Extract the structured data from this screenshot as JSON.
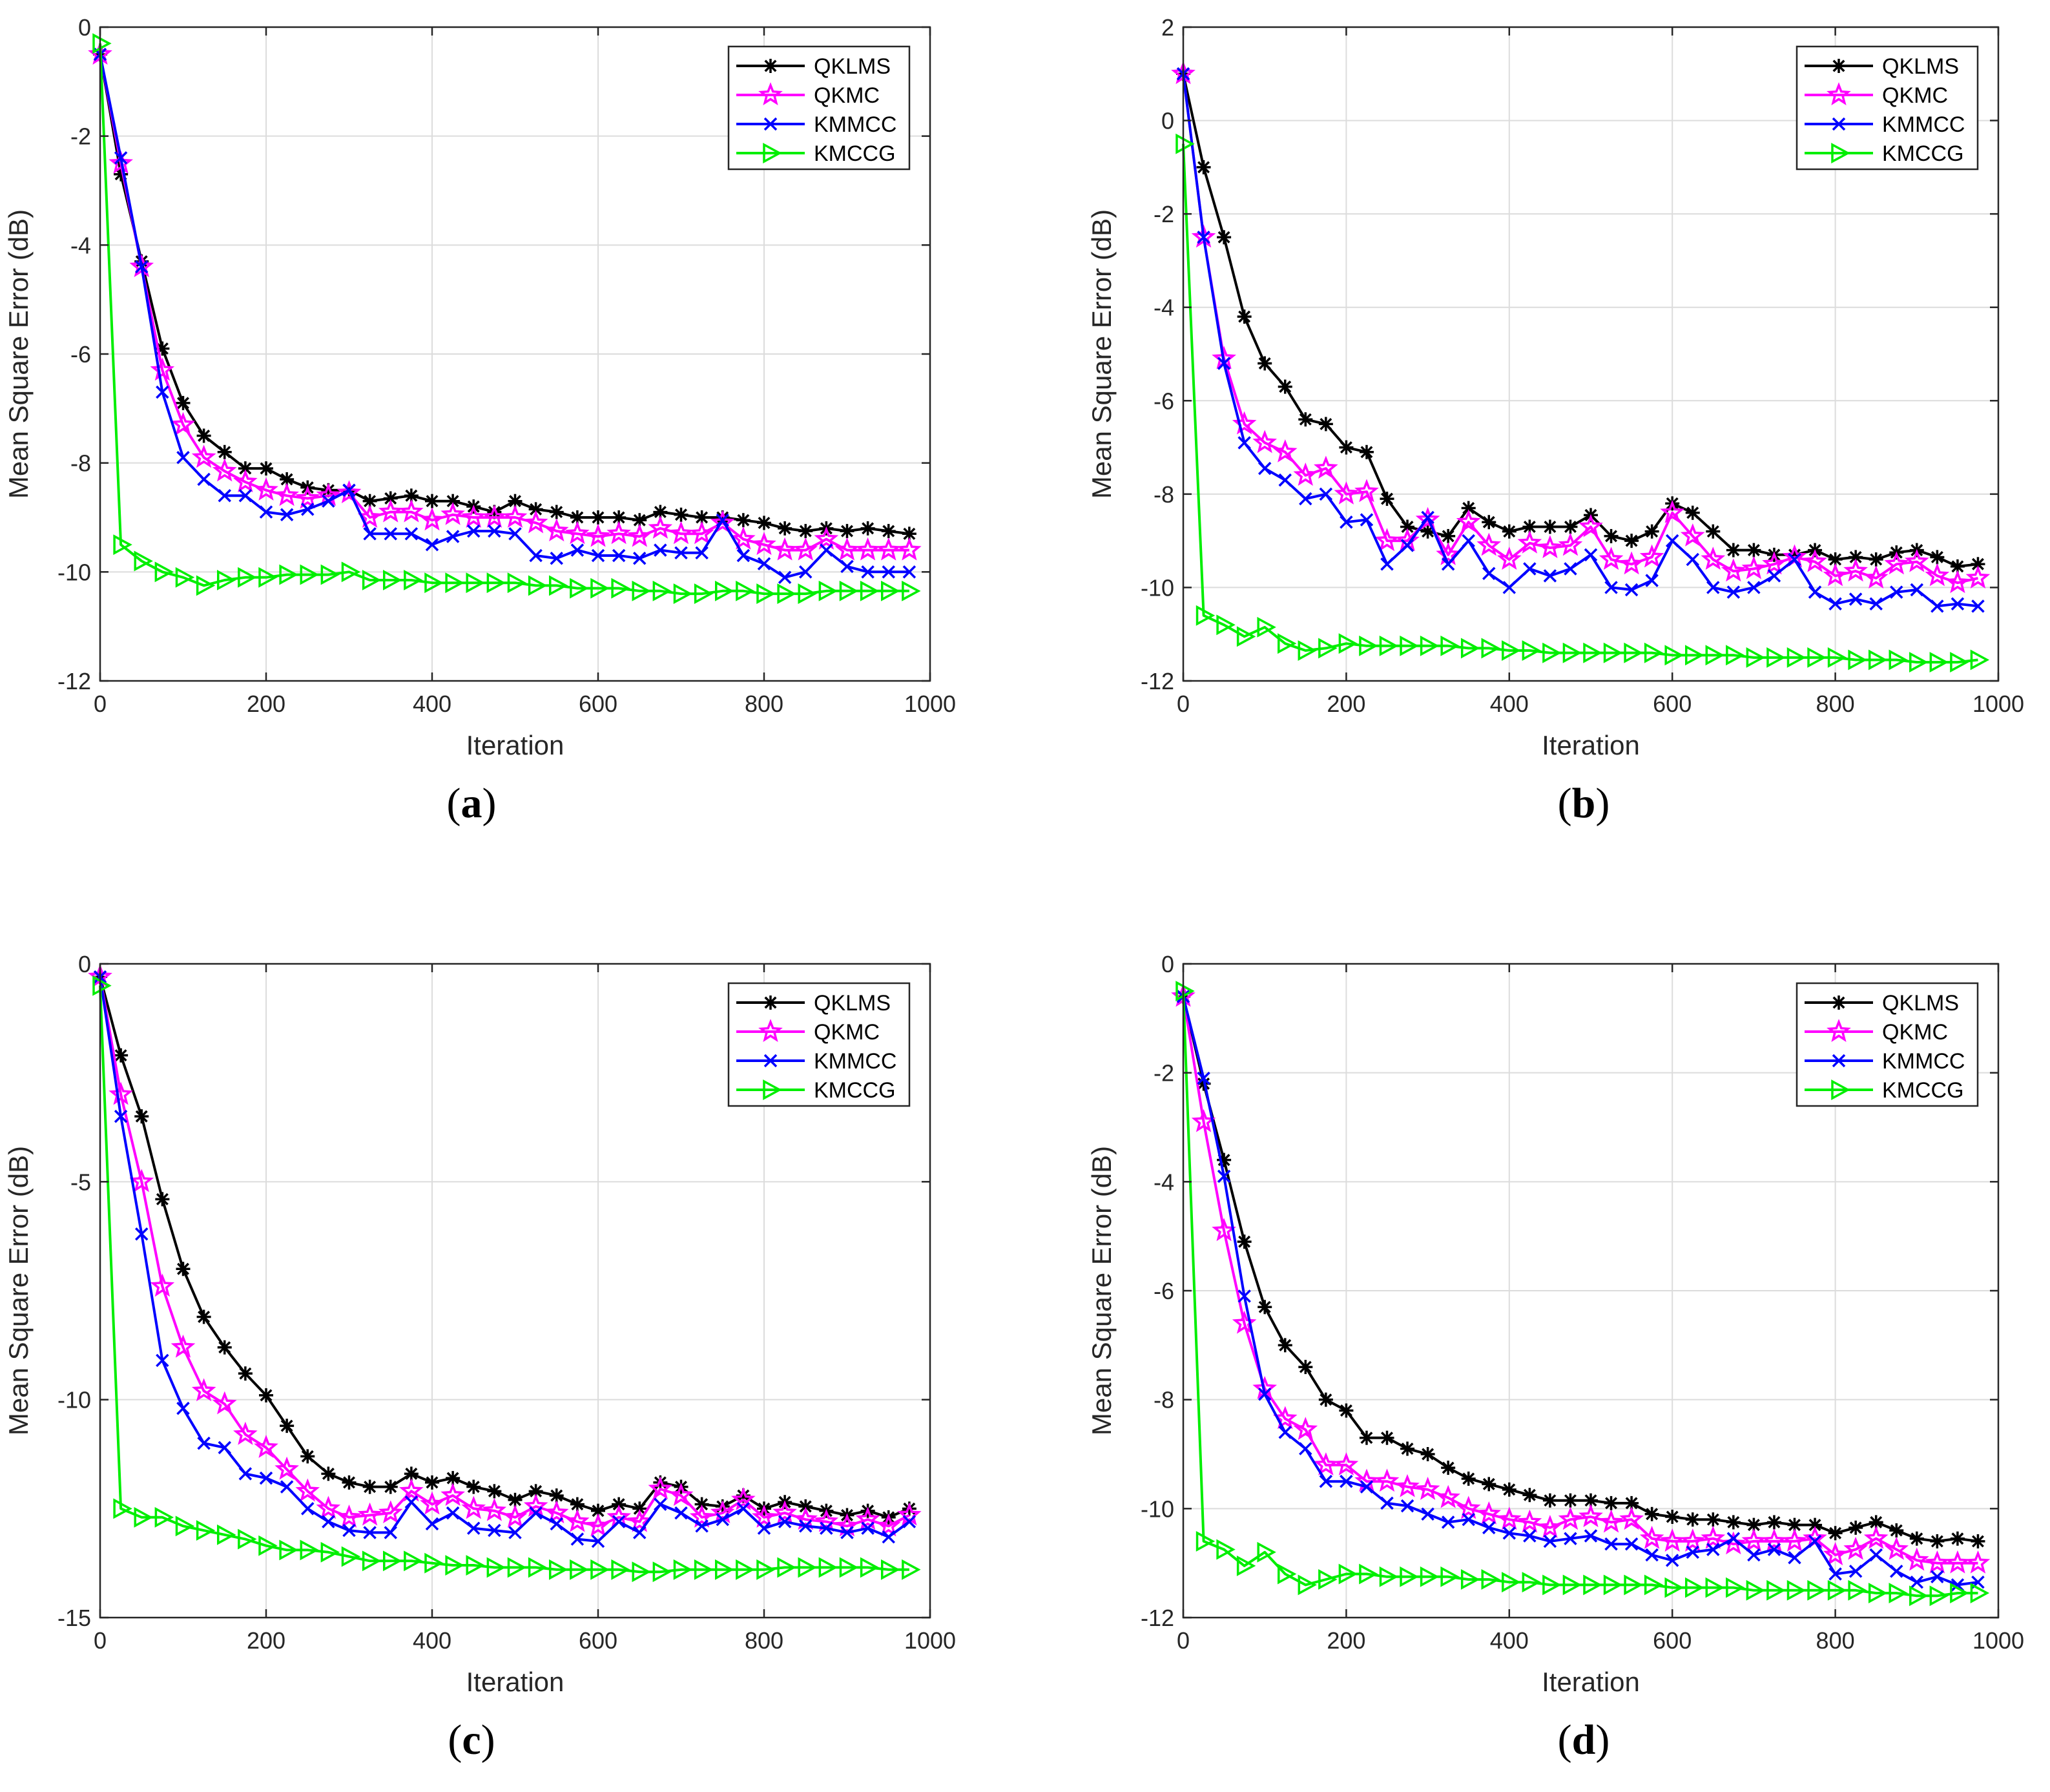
{
  "chart_data": [
    {
      "type": "line",
      "caption": "(a)",
      "xlabel": "Iteration",
      "ylabel": "Mean Square Error (dB)",
      "xlim": [
        0,
        1000
      ],
      "ylim": [
        -12,
        0
      ],
      "xticks": [
        "0",
        "200",
        "400",
        "600",
        "800",
        "1000"
      ],
      "yticks": [
        "0",
        "-2",
        "-4",
        "-6",
        "-8",
        "-10",
        "-12"
      ],
      "xtick_values": [
        0,
        200,
        400,
        600,
        800,
        1000
      ],
      "ytick_values": [
        0,
        -2,
        -4,
        -6,
        -8,
        -10,
        -12
      ],
      "grid": true,
      "legend": "top-right",
      "x": [
        0,
        25,
        50,
        75,
        100,
        125,
        150,
        175,
        200,
        225,
        250,
        275,
        300,
        325,
        350,
        375,
        400,
        425,
        450,
        475,
        500,
        525,
        550,
        575,
        600,
        625,
        650,
        675,
        700,
        725,
        750,
        775,
        800,
        825,
        850,
        875,
        900,
        925,
        950,
        975
      ],
      "series": [
        {
          "name": "QKLMS",
          "color": "#000000",
          "marker": "asterisk",
          "values": [
            -0.5,
            -2.7,
            -4.3,
            -5.9,
            -6.9,
            -7.5,
            -7.8,
            -8.1,
            -8.1,
            -8.3,
            -8.45,
            -8.5,
            -8.5,
            -8.7,
            -8.65,
            -8.6,
            -8.7,
            -8.7,
            -8.8,
            -8.9,
            -8.7,
            -8.85,
            -8.9,
            -9.0,
            -9.0,
            -9.0,
            -9.05,
            -8.9,
            -8.95,
            -9.0,
            -9.0,
            -9.05,
            -9.1,
            -9.2,
            -9.25,
            -9.2,
            -9.25,
            -9.2,
            -9.25,
            -9.3
          ]
        },
        {
          "name": "QKMC",
          "color": "#ff00ff",
          "marker": "star",
          "values": [
            -0.5,
            -2.5,
            -4.4,
            -6.3,
            -7.3,
            -7.9,
            -8.15,
            -8.35,
            -8.5,
            -8.6,
            -8.65,
            -8.6,
            -8.55,
            -9.0,
            -8.9,
            -8.9,
            -9.05,
            -8.95,
            -9.0,
            -9.0,
            -9.0,
            -9.1,
            -9.25,
            -9.3,
            -9.35,
            -9.3,
            -9.35,
            -9.2,
            -9.3,
            -9.3,
            -9.1,
            -9.4,
            -9.5,
            -9.6,
            -9.6,
            -9.4,
            -9.6,
            -9.6,
            -9.6,
            -9.6
          ]
        },
        {
          "name": "KMMCC",
          "color": "#0000ff",
          "marker": "x",
          "values": [
            -0.5,
            -2.4,
            -4.4,
            -6.7,
            -7.9,
            -8.3,
            -8.6,
            -8.6,
            -8.9,
            -8.95,
            -8.85,
            -8.7,
            -8.5,
            -9.3,
            -9.3,
            -9.3,
            -9.5,
            -9.35,
            -9.25,
            -9.25,
            -9.3,
            -9.7,
            -9.75,
            -9.6,
            -9.7,
            -9.7,
            -9.75,
            -9.6,
            -9.65,
            -9.65,
            -9.05,
            -9.7,
            -9.85,
            -10.1,
            -10.0,
            -9.6,
            -9.9,
            -10.0,
            -10.0,
            -10.0
          ]
        },
        {
          "name": "KMCCG",
          "color": "#00ee00",
          "marker": "triangle-right",
          "values": [
            -0.3,
            -9.5,
            -9.8,
            -10.0,
            -10.1,
            -10.25,
            -10.15,
            -10.1,
            -10.1,
            -10.05,
            -10.05,
            -10.05,
            -10.0,
            -10.15,
            -10.15,
            -10.15,
            -10.2,
            -10.2,
            -10.2,
            -10.2,
            -10.2,
            -10.25,
            -10.25,
            -10.3,
            -10.3,
            -10.3,
            -10.35,
            -10.35,
            -10.4,
            -10.4,
            -10.35,
            -10.35,
            -10.4,
            -10.4,
            -10.4,
            -10.35,
            -10.35,
            -10.35,
            -10.35,
            -10.35
          ]
        }
      ]
    },
    {
      "type": "line",
      "caption": "(b)",
      "xlabel": "Iteration",
      "ylabel": "Mean Square Error (dB)",
      "xlim": [
        0,
        1000
      ],
      "ylim": [
        -12,
        2
      ],
      "xticks": [
        "0",
        "200",
        "400",
        "600",
        "800",
        "1000"
      ],
      "yticks": [
        "2",
        "0",
        "-2",
        "-4",
        "-6",
        "-8",
        "-10",
        "-12"
      ],
      "xtick_values": [
        0,
        200,
        400,
        600,
        800,
        1000
      ],
      "ytick_values": [
        2,
        0,
        -2,
        -4,
        -6,
        -8,
        -10,
        -12
      ],
      "grid": true,
      "legend": "top-right",
      "x": [
        0,
        25,
        50,
        75,
        100,
        125,
        150,
        175,
        200,
        225,
        250,
        275,
        300,
        325,
        350,
        375,
        400,
        425,
        450,
        475,
        500,
        525,
        550,
        575,
        600,
        625,
        650,
        675,
        700,
        725,
        750,
        775,
        800,
        825,
        850,
        875,
        900,
        925,
        950,
        975
      ],
      "series": [
        {
          "name": "QKLMS",
          "color": "#000000",
          "marker": "asterisk",
          "values": [
            1.0,
            -1.0,
            -2.5,
            -4.2,
            -5.2,
            -5.7,
            -6.4,
            -6.5,
            -7.0,
            -7.1,
            -8.1,
            -8.7,
            -8.8,
            -8.9,
            -8.3,
            -8.6,
            -8.8,
            -8.7,
            -8.7,
            -8.7,
            -8.45,
            -8.9,
            -9.0,
            -8.8,
            -8.2,
            -8.4,
            -8.8,
            -9.2,
            -9.2,
            -9.3,
            -9.3,
            -9.2,
            -9.4,
            -9.35,
            -9.4,
            -9.25,
            -9.2,
            -9.35,
            -9.55,
            -9.5
          ]
        },
        {
          "name": "QKMC",
          "color": "#ff00ff",
          "marker": "star",
          "values": [
            1.0,
            -2.5,
            -5.1,
            -6.5,
            -6.9,
            -7.1,
            -7.6,
            -7.45,
            -8.0,
            -7.95,
            -9.0,
            -9.0,
            -8.55,
            -9.3,
            -8.6,
            -9.1,
            -9.4,
            -9.05,
            -9.15,
            -9.1,
            -8.7,
            -9.4,
            -9.5,
            -9.35,
            -8.4,
            -8.9,
            -9.4,
            -9.65,
            -9.6,
            -9.5,
            -9.35,
            -9.45,
            -9.75,
            -9.65,
            -9.8,
            -9.5,
            -9.45,
            -9.75,
            -9.9,
            -9.8
          ]
        },
        {
          "name": "KMMCC",
          "color": "#0000ff",
          "marker": "x",
          "values": [
            1.0,
            -2.5,
            -5.2,
            -6.9,
            -7.45,
            -7.7,
            -8.1,
            -8.0,
            -8.6,
            -8.55,
            -9.5,
            -9.1,
            -8.5,
            -9.5,
            -9.0,
            -9.7,
            -10.0,
            -9.6,
            -9.75,
            -9.6,
            -9.3,
            -10.0,
            -10.05,
            -9.85,
            -9.0,
            -9.4,
            -10.0,
            -10.1,
            -10.0,
            -9.75,
            -9.4,
            -10.1,
            -10.35,
            -10.25,
            -10.35,
            -10.1,
            -10.05,
            -10.4,
            -10.35,
            -10.4
          ]
        },
        {
          "name": "KMCCG",
          "color": "#00ee00",
          "marker": "triangle-right",
          "values": [
            -0.5,
            -10.6,
            -10.8,
            -11.05,
            -10.85,
            -11.2,
            -11.35,
            -11.3,
            -11.2,
            -11.25,
            -11.25,
            -11.25,
            -11.25,
            -11.25,
            -11.3,
            -11.3,
            -11.35,
            -11.35,
            -11.4,
            -11.4,
            -11.4,
            -11.4,
            -11.4,
            -11.4,
            -11.45,
            -11.45,
            -11.45,
            -11.45,
            -11.5,
            -11.5,
            -11.5,
            -11.5,
            -11.5,
            -11.55,
            -11.55,
            -11.55,
            -11.6,
            -11.6,
            -11.6,
            -11.55
          ]
        }
      ]
    },
    {
      "type": "line",
      "caption": "(c)",
      "xlabel": "Iteration",
      "ylabel": "Mean Square Error (dB)",
      "xlim": [
        0,
        1000
      ],
      "ylim": [
        -15,
        0
      ],
      "xticks": [
        "0",
        "200",
        "400",
        "600",
        "800",
        "1000"
      ],
      "yticks": [
        "0",
        "-5",
        "-10",
        "-15"
      ],
      "xtick_values": [
        0,
        200,
        400,
        600,
        800,
        1000
      ],
      "ytick_values": [
        0,
        -5,
        -10,
        -15
      ],
      "grid": true,
      "legend": "top-right",
      "x": [
        0,
        25,
        50,
        75,
        100,
        125,
        150,
        175,
        200,
        225,
        250,
        275,
        300,
        325,
        350,
        375,
        400,
        425,
        450,
        475,
        500,
        525,
        550,
        575,
        600,
        625,
        650,
        675,
        700,
        725,
        750,
        775,
        800,
        825,
        850,
        875,
        900,
        925,
        950,
        975
      ],
      "series": [
        {
          "name": "QKLMS",
          "color": "#000000",
          "marker": "asterisk",
          "values": [
            -0.3,
            -2.1,
            -3.5,
            -5.4,
            -7.0,
            -8.1,
            -8.8,
            -9.4,
            -9.9,
            -10.6,
            -11.3,
            -11.7,
            -11.9,
            -12.0,
            -12.0,
            -11.7,
            -11.9,
            -11.8,
            -12.0,
            -12.1,
            -12.3,
            -12.1,
            -12.2,
            -12.4,
            -12.55,
            -12.4,
            -12.5,
            -11.9,
            -12.0,
            -12.4,
            -12.45,
            -12.2,
            -12.5,
            -12.35,
            -12.45,
            -12.55,
            -12.65,
            -12.55,
            -12.7,
            -12.5
          ]
        },
        {
          "name": "QKMC",
          "color": "#ff00ff",
          "marker": "star",
          "values": [
            -0.3,
            -3.0,
            -5.0,
            -7.4,
            -8.8,
            -9.8,
            -10.1,
            -10.8,
            -11.1,
            -11.6,
            -12.1,
            -12.5,
            -12.7,
            -12.65,
            -12.6,
            -12.1,
            -12.4,
            -12.2,
            -12.5,
            -12.55,
            -12.7,
            -12.45,
            -12.6,
            -12.8,
            -12.9,
            -12.7,
            -12.8,
            -12.05,
            -12.2,
            -12.7,
            -12.6,
            -12.3,
            -12.7,
            -12.6,
            -12.75,
            -12.8,
            -12.9,
            -12.75,
            -12.9,
            -12.65
          ]
        },
        {
          "name": "KMMCC",
          "color": "#0000ff",
          "marker": "x",
          "values": [
            -0.3,
            -3.5,
            -6.2,
            -9.1,
            -10.2,
            -11.0,
            -11.1,
            -11.7,
            -11.8,
            -12.0,
            -12.5,
            -12.8,
            -13.0,
            -13.05,
            -13.05,
            -12.35,
            -12.85,
            -12.6,
            -12.95,
            -13.0,
            -13.05,
            -12.6,
            -12.85,
            -13.2,
            -13.25,
            -12.8,
            -13.05,
            -12.4,
            -12.6,
            -12.9,
            -12.75,
            -12.5,
            -12.95,
            -12.8,
            -12.9,
            -12.95,
            -13.05,
            -12.95,
            -13.15,
            -12.8
          ]
        },
        {
          "name": "KMCCG",
          "color": "#00ee00",
          "marker": "triangle-right",
          "values": [
            -0.5,
            -12.5,
            -12.7,
            -12.7,
            -12.9,
            -13.0,
            -13.1,
            -13.2,
            -13.35,
            -13.45,
            -13.45,
            -13.5,
            -13.6,
            -13.7,
            -13.7,
            -13.7,
            -13.75,
            -13.8,
            -13.8,
            -13.85,
            -13.85,
            -13.85,
            -13.9,
            -13.9,
            -13.9,
            -13.9,
            -13.95,
            -13.95,
            -13.9,
            -13.9,
            -13.9,
            -13.9,
            -13.9,
            -13.85,
            -13.85,
            -13.85,
            -13.85,
            -13.85,
            -13.9,
            -13.9
          ]
        }
      ]
    },
    {
      "type": "line",
      "caption": "(d)",
      "xlabel": "Iteration",
      "ylabel": "Mean Square Error (dB)",
      "xlim": [
        0,
        1000
      ],
      "ylim": [
        -12,
        0
      ],
      "xticks": [
        "0",
        "200",
        "400",
        "600",
        "800",
        "1000"
      ],
      "yticks": [
        "0",
        "-2",
        "-4",
        "-6",
        "-8",
        "-10",
        "-12"
      ],
      "xtick_values": [
        0,
        200,
        400,
        600,
        800,
        1000
      ],
      "ytick_values": [
        0,
        -2,
        -4,
        -6,
        -8,
        -10,
        -12
      ],
      "grid": true,
      "legend": "top-right",
      "x": [
        0,
        25,
        50,
        75,
        100,
        125,
        150,
        175,
        200,
        225,
        250,
        275,
        300,
        325,
        350,
        375,
        400,
        425,
        450,
        475,
        500,
        525,
        550,
        575,
        600,
        625,
        650,
        675,
        700,
        725,
        750,
        775,
        800,
        825,
        850,
        875,
        900,
        925,
        950,
        975
      ],
      "series": [
        {
          "name": "QKLMS",
          "color": "#000000",
          "marker": "asterisk",
          "values": [
            -0.6,
            -2.2,
            -3.6,
            -5.1,
            -6.3,
            -7.0,
            -7.4,
            -8.0,
            -8.2,
            -8.7,
            -8.7,
            -8.9,
            -9.0,
            -9.25,
            -9.45,
            -9.55,
            -9.65,
            -9.75,
            -9.85,
            -9.85,
            -9.85,
            -9.9,
            -9.9,
            -10.1,
            -10.15,
            -10.2,
            -10.2,
            -10.25,
            -10.3,
            -10.25,
            -10.3,
            -10.3,
            -10.45,
            -10.35,
            -10.25,
            -10.4,
            -10.55,
            -10.6,
            -10.55,
            -10.6
          ]
        },
        {
          "name": "QKMC",
          "color": "#ff00ff",
          "marker": "star",
          "values": [
            -0.6,
            -2.9,
            -4.9,
            -6.6,
            -7.8,
            -8.35,
            -8.55,
            -9.2,
            -9.2,
            -9.5,
            -9.5,
            -9.6,
            -9.65,
            -9.8,
            -10.0,
            -10.1,
            -10.2,
            -10.25,
            -10.35,
            -10.2,
            -10.15,
            -10.25,
            -10.2,
            -10.55,
            -10.6,
            -10.6,
            -10.55,
            -10.65,
            -10.6,
            -10.6,
            -10.6,
            -10.55,
            -10.85,
            -10.75,
            -10.55,
            -10.75,
            -10.95,
            -11.0,
            -11.0,
            -11.0
          ]
        },
        {
          "name": "KMMCC",
          "color": "#0000ff",
          "marker": "x",
          "values": [
            -0.6,
            -2.1,
            -3.9,
            -6.1,
            -7.9,
            -8.6,
            -8.9,
            -9.5,
            -9.5,
            -9.6,
            -9.9,
            -9.95,
            -10.1,
            -10.25,
            -10.2,
            -10.35,
            -10.45,
            -10.5,
            -10.6,
            -10.55,
            -10.5,
            -10.65,
            -10.65,
            -10.85,
            -10.95,
            -10.8,
            -10.75,
            -10.55,
            -10.85,
            -10.75,
            -10.9,
            -10.6,
            -11.2,
            -11.15,
            -10.85,
            -11.15,
            -11.35,
            -11.25,
            -11.4,
            -11.35
          ]
        },
        {
          "name": "KMCCG",
          "color": "#00ee00",
          "marker": "triangle-right",
          "values": [
            -0.5,
            -10.6,
            -10.75,
            -11.05,
            -10.8,
            -11.2,
            -11.4,
            -11.3,
            -11.2,
            -11.2,
            -11.25,
            -11.25,
            -11.25,
            -11.25,
            -11.3,
            -11.3,
            -11.35,
            -11.35,
            -11.4,
            -11.4,
            -11.4,
            -11.4,
            -11.4,
            -11.4,
            -11.45,
            -11.45,
            -11.45,
            -11.45,
            -11.5,
            -11.5,
            -11.5,
            -11.5,
            -11.5,
            -11.5,
            -11.55,
            -11.55,
            -11.6,
            -11.6,
            -11.55,
            -11.55
          ]
        }
      ]
    }
  ]
}
